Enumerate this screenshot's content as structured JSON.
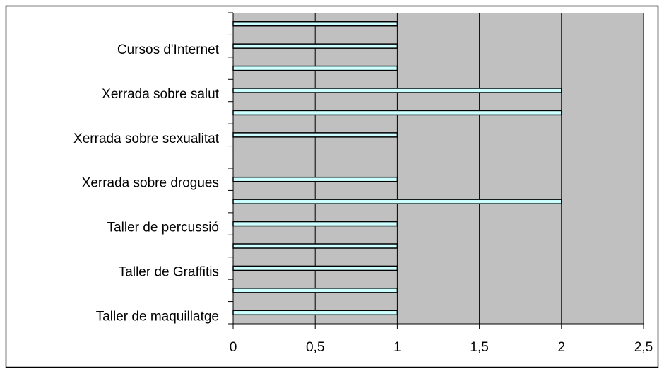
{
  "chart_data": {
    "type": "bar",
    "orientation": "horizontal",
    "categories": [
      "Taller de maquillatge",
      null,
      "Taller de Graffitis",
      null,
      "Taller de percussió",
      null,
      "Xerrada sobre drogues",
      null,
      "Xerrada sobre sexualitat",
      null,
      "Xerrada sobre salut",
      null,
      "Cursos d'Internet",
      null
    ],
    "values": [
      1,
      1,
      1,
      1,
      1,
      2,
      1,
      null,
      1,
      2,
      2,
      1,
      1,
      1
    ],
    "color": "#ccffff",
    "plot_background": "#c0c0c0",
    "xlim": [
      0,
      2.5
    ],
    "xticks": [
      0,
      {
        "value": 0.5,
        "label": "0,5"
      },
      1,
      {
        "value": 1.5,
        "label": "1,5"
      },
      2,
      {
        "value": 2.5,
        "label": "2,5"
      }
    ],
    "grid": true
  }
}
